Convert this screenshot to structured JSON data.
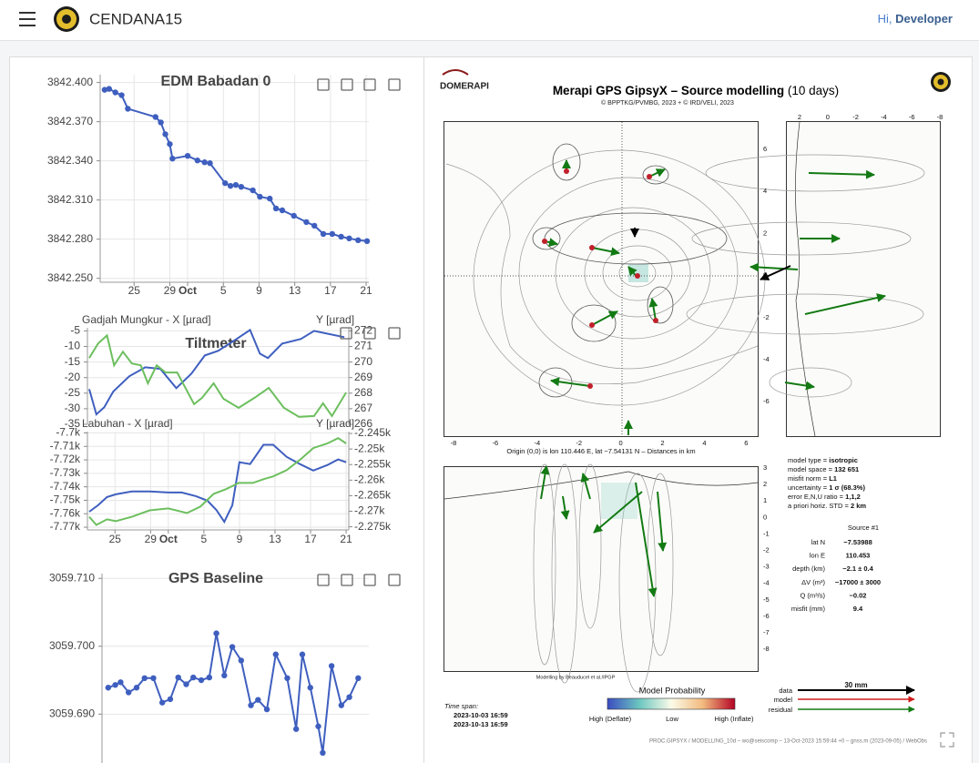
{
  "header": {
    "app_name": "CENDANA15",
    "greeting": "Hi,",
    "user": "Developer"
  },
  "chart_data": [
    {
      "type": "line",
      "title": "EDM Babadan 0",
      "x": [
        -8.3,
        -7.8,
        -7.1,
        -6.4,
        -5.7,
        -2.6,
        -2.0,
        -1.5,
        -1.0,
        -0.7,
        1.0,
        2.1,
        2.9,
        3.5,
        5.2,
        5.8,
        6.4,
        7.0,
        8.3,
        9.1,
        10.2,
        10.9,
        11.6,
        12.9,
        14.3,
        15.2,
        16.2,
        17.2,
        18.2,
        19.1,
        20.1,
        21.1
      ],
      "series": [
        {
          "color": "#3f5fbf",
          "values": [
            3842.3944,
            3842.3951,
            3842.3924,
            3842.3903,
            3842.3799,
            3842.3736,
            3842.3694,
            3842.3604,
            3842.3528,
            3842.3417,
            3842.3438,
            3842.3403,
            3842.3389,
            3842.3382,
            3842.3229,
            3842.3208,
            3842.3215,
            3842.3201,
            3842.3174,
            3842.3125,
            3842.3111,
            3842.3035,
            3842.3021,
            3842.2979,
            3842.2931,
            3842.2903,
            3842.284,
            3842.284,
            3842.2819,
            3842.2806,
            3842.2792,
            3842.2785
          ]
        }
      ],
      "xlim": [
        -8.8,
        21.3
      ],
      "xticks": [
        {
          "value": -5,
          "label": "25"
        },
        {
          "value": -1,
          "label": "29"
        },
        {
          "value": 1,
          "label": "Oct"
        },
        5,
        9,
        13,
        17,
        21
      ],
      "ylim": [
        3842.247,
        3842.406
      ],
      "yticks": [
        {
          "value": 3842.4,
          "label": "3842.400"
        },
        {
          "value": 3842.37,
          "label": "3842.370"
        },
        {
          "value": 3842.34,
          "label": "3842.340"
        },
        {
          "value": 3842.31,
          "label": "3842.310"
        },
        {
          "value": 3842.28,
          "label": "3842.280"
        },
        {
          "value": 3842.25,
          "label": "3842.250"
        }
      ],
      "grid": true,
      "markers": true
    },
    {
      "type": "line",
      "title": "Tiltmeter",
      "y_label": "Gadjah Mungkur - X [µrad]",
      "y2_label": "Y [µrad]",
      "series": [
        {
          "color": "#3f5fbf",
          "axis": "y",
          "x": [
            -7.9,
            -7.1,
            -6.2,
            -5.2,
            -3.4,
            -1.6,
            0.1,
            1.9,
            3.6,
            5.1,
            6.6,
            8.2,
            10.2,
            11.3,
            12.2,
            13.8,
            15.9,
            17.4,
            18.9,
            20.8
          ],
          "values": [
            -23.7,
            -31.8,
            -29.5,
            -24.5,
            -19.6,
            -16.7,
            -17.2,
            -23.4,
            -18.7,
            -12.9,
            -11.4,
            -8.5,
            -4.7,
            -12.3,
            -13.7,
            -9.1,
            -7.6,
            -5.0,
            -5.9,
            -7.0
          ]
        },
        {
          "color": "#6dbf5f",
          "axis": "y2",
          "x": [
            -7.9,
            -6.9,
            -5.9,
            -5.1,
            -4.1,
            -3.1,
            -2.1,
            -1.3,
            -0.3,
            0.7,
            2.0,
            3.9,
            4.8,
            6.1,
            7.2,
            8.9,
            10.7,
            12.3,
            14.0,
            15.7,
            17.4,
            18.4,
            19.4,
            21.0
          ],
          "values": [
            270.26,
            271.19,
            271.71,
            269.79,
            270.66,
            269.91,
            269.79,
            268.63,
            269.79,
            269.33,
            269.33,
            267.29,
            267.7,
            268.63,
            267.64,
            267.06,
            267.7,
            268.34,
            267.06,
            266.48,
            266.53,
            267.35,
            266.53,
            268.05
          ]
        }
      ],
      "xlim": [
        -8.1,
        21.3
      ],
      "ylim": [
        -35,
        -4
      ],
      "yticks": [
        -35,
        -30,
        -25,
        -20,
        -15,
        -10,
        -5
      ],
      "y2lim": [
        266,
        272.2
      ],
      "y2ticks": [
        266,
        267,
        268,
        269,
        270,
        271,
        272
      ],
      "grid": true,
      "markers": false
    },
    {
      "type": "line",
      "y_label": "Labuhan - X [µrad]",
      "y2_label": "Y [µrad]",
      "series": [
        {
          "color": "#3f5fbf",
          "axis": "y",
          "x": [
            -7.9,
            -6.9,
            -5.9,
            -4.9,
            -3.1,
            -1.1,
            1.0,
            2.5,
            4.1,
            5.4,
            6.4,
            7.3,
            8.2,
            9.0,
            10.2,
            11.7,
            12.8,
            14.3,
            15.8,
            17.3,
            18.9,
            20.1,
            21.0
          ],
          "values": [
            -7758.5,
            -7753.7,
            -7747.6,
            -7745.6,
            -7743.5,
            -7743.5,
            -7744.2,
            -7744.2,
            -7746.9,
            -7750.3,
            -7757.1,
            -7766.0,
            -7753.7,
            -7721.8,
            -7723.1,
            -7708.8,
            -7708.8,
            -7717.7,
            -7723.1,
            -7727.9,
            -7723.8,
            -7719.7,
            -7721.8
          ]
        },
        {
          "color": "#6dbf5f",
          "axis": "y2",
          "x": [
            -7.9,
            -7.1,
            -5.9,
            -4.9,
            -3.1,
            -1.1,
            1.0,
            3.1,
            4.6,
            6.1,
            7.5,
            8.9,
            10.5,
            11.7,
            12.8,
            14.3,
            15.8,
            17.3,
            18.9,
            20.1,
            21.0
          ],
          "values": [
            -2271.8,
            -2274.4,
            -2272.6,
            -2273.2,
            -2271.8,
            -2269.7,
            -2269.1,
            -2270.6,
            -2268.5,
            -2264.4,
            -2262.9,
            -2260.9,
            -2260.9,
            -2259.7,
            -2258.8,
            -2256.8,
            -2253.5,
            -2249.7,
            -2248.2,
            -2246.5,
            -2248.2
          ]
        }
      ],
      "xlim": [
        -8.1,
        21.3
      ],
      "xticks": [
        {
          "value": -5,
          "label": "25"
        },
        {
          "value": -1,
          "label": "29"
        },
        {
          "value": 1,
          "label": "Oct"
        },
        5,
        9,
        13,
        17,
        21
      ],
      "ylim": [
        -7772,
        -7699
      ],
      "yticks": [
        {
          "value": -7700,
          "label": "-7.7k"
        },
        {
          "value": -7710,
          "label": "-7.71k"
        },
        {
          "value": -7720,
          "label": "-7.72k"
        },
        {
          "value": -7730,
          "label": "-7.73k"
        },
        {
          "value": -7740,
          "label": "-7.74k"
        },
        {
          "value": -7750,
          "label": "-7.75k"
        },
        {
          "value": -7760,
          "label": "-7.76k"
        },
        {
          "value": -7770,
          "label": "-7.77k"
        }
      ],
      "y2lim": [
        -2276,
        -2244.4
      ],
      "y2ticks": [
        {
          "value": -2245,
          "label": "-2.245k"
        },
        {
          "value": -2250,
          "label": "-2.25k"
        },
        {
          "value": -2255,
          "label": "-2.255k"
        },
        {
          "value": -2260,
          "label": "-2.26k"
        },
        {
          "value": -2265,
          "label": "-2.265k"
        },
        {
          "value": -2270,
          "label": "-2.27k"
        },
        {
          "value": -2275,
          "label": "-2.275k"
        }
      ],
      "grid": true,
      "markers": false
    },
    {
      "type": "line",
      "title": "GPS Baseline",
      "x": [
        -8.1,
        -7.3,
        -6.7,
        -5.8,
        -4.9,
        -4.0,
        -3.0,
        -2.0,
        -1.1,
        -0.2,
        0.7,
        1.5,
        2.4,
        3.3,
        4.1,
        5.0,
        5.9,
        6.9,
        8.0,
        8.8,
        9.8,
        10.8,
        12.1,
        13.1,
        13.8,
        14.7,
        15.6,
        16.1,
        17.1,
        18.2,
        19.1,
        20.1
      ],
      "series": [
        {
          "color": "#3f5fbf",
          "values": [
            3059.6939,
            3059.6943,
            3059.6947,
            3059.6932,
            3059.6939,
            3059.6953,
            3059.6953,
            3059.6917,
            3059.6922,
            3059.6954,
            3059.6944,
            3059.6954,
            3059.695,
            3059.6954,
            3059.7019,
            3059.6957,
            3059.6999,
            3059.6979,
            3059.6913,
            3059.6921,
            3059.6907,
            3059.6988,
            3059.6953,
            3059.6878,
            3059.6988,
            3059.6939,
            3059.6882,
            3059.6843,
            3059.6971,
            3059.6913,
            3059.6925,
            3059.6953
          ]
        }
      ],
      "xlim": [
        -8.8,
        21.3
      ],
      "ylim": [
        3059.6828,
        3059.7107
      ],
      "yticks": [
        {
          "value": 3059.71,
          "label": "3059.710"
        },
        {
          "value": 3059.7,
          "label": "3059.700"
        },
        {
          "value": 3059.69,
          "label": "3059.690"
        }
      ],
      "grid": true,
      "markers": true
    }
  ],
  "model": {
    "logo": "DOMERAPI",
    "title": "Merapi GPS GipsyX – Source modelling",
    "period": "(10 days)",
    "credit": "© BPPTKG/PVMBG, 2023 + © IRD/VELI, 2023",
    "map_xticks": [
      -8,
      -6,
      -4,
      -2,
      0,
      2,
      4,
      6
    ],
    "map_yticks": [
      6,
      4,
      2,
      0,
      -2,
      -4,
      -6
    ],
    "side_xticks": [
      2,
      0,
      -2,
      -4,
      -6,
      -8
    ],
    "depth_ticks": [
      3,
      2,
      1,
      0,
      -1,
      -2,
      -3,
      -4,
      -5,
      -6,
      -7,
      -8
    ],
    "origin_note": "Origin (0,0) is lon 110.446 E, lat −7.54131 N – Distances in km",
    "modelling_credit": "Modelling by Beauducel et al./IPGP",
    "params": [
      [
        "model type = ",
        "isotropic"
      ],
      [
        "model space = ",
        "132 651"
      ],
      [
        "misfit norm = ",
        "L1"
      ],
      [
        "uncertainty = ",
        "1 σ (68.3%)"
      ],
      [
        "error E,N,U ratio = ",
        "1,1,2"
      ],
      [
        "a priori horiz. STD = ",
        "2 km"
      ]
    ],
    "source_header": "Source #1",
    "source_rows": [
      [
        "lat N",
        "−7.53988"
      ],
      [
        "lon E",
        "110.453"
      ],
      [
        "depth (km)",
        "−2.1 ± 0.4"
      ],
      [
        "ΔV (m³)",
        "−17000 ± 3000"
      ],
      [
        "Q (m³/s)",
        "−0.02"
      ],
      [
        "misfit (mm)",
        "9.4"
      ]
    ],
    "time_span_label": "Time span:",
    "time_span": [
      "2023-10-03 16:59",
      "2023-10-13 16:59"
    ],
    "legend_title": "Model Probability",
    "legend_labels": [
      "High (Deflate)",
      "Low",
      "High (Inflate)"
    ],
    "arrow_legend": [
      "data",
      "model",
      "residual"
    ],
    "scale": "30 mm",
    "footer": "PROC.GIPSYX / MODELLING_10d – wo@seiscomp – 13-Oct-2023 15:59:44 +0 – gnss.m (2023-09-05) / WebObs"
  }
}
